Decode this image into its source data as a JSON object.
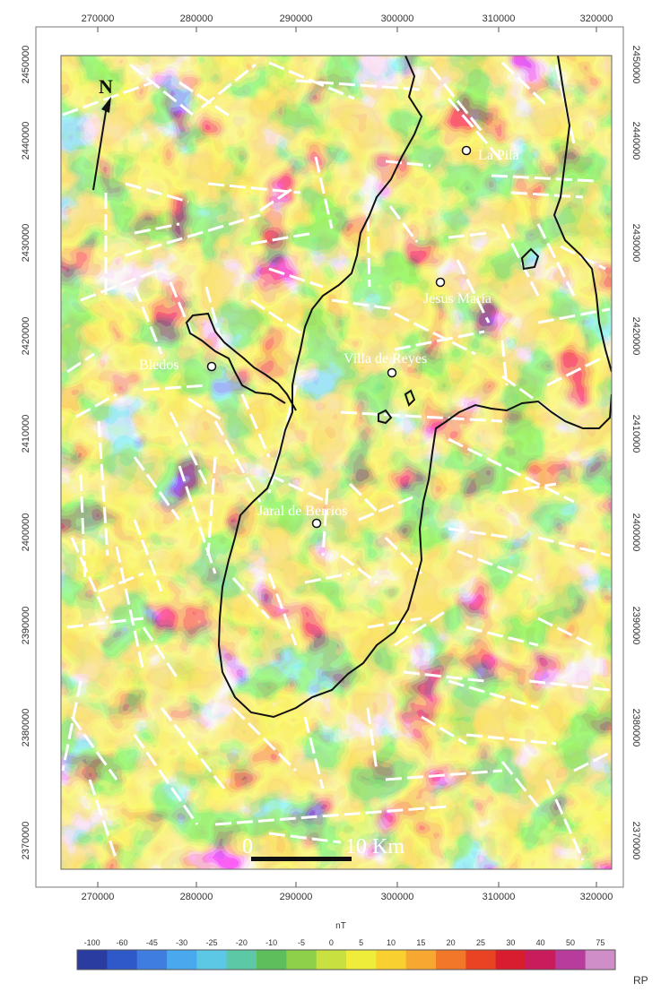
{
  "x_ticks": [
    "270000",
    "280000",
    "290000",
    "300000",
    "310000",
    "320000"
  ],
  "y_ticks": [
    "2450000",
    "2440000",
    "2430000",
    "2420000",
    "2410000",
    "2400000",
    "2390000",
    "2380000",
    "2370000"
  ],
  "places": [
    {
      "name": "La Pila"
    },
    {
      "name": "Jesus Maria"
    },
    {
      "name": "Bledos"
    },
    {
      "name": "Villa de Reyes"
    },
    {
      "name": "Jaral de Berrios"
    }
  ],
  "north_label": "N",
  "scale_bar": {
    "start_label": "0",
    "end_label": "10 Km"
  },
  "colorbar": {
    "unit": "nT",
    "tick_labels": [
      "-100",
      "-60",
      "-45",
      "-30",
      "-25",
      "-20",
      "-10",
      "-5",
      "0",
      "5",
      "10",
      "15",
      "20",
      "25",
      "30",
      "40",
      "50",
      "75"
    ],
    "side_label": "RP",
    "colors": [
      "#2a3ca0",
      "#2f58c8",
      "#3f7ee0",
      "#4aa8ee",
      "#5cc8e6",
      "#5cc8a6",
      "#5cbf5c",
      "#8fd04a",
      "#c8e040",
      "#f0ec3a",
      "#f8d030",
      "#f6a830",
      "#f07828",
      "#e84424",
      "#d81e2e",
      "#c81c5c",
      "#b83c9c",
      "#d08ec8"
    ]
  },
  "colors": {
    "frame": "#7a7a7a",
    "lineament": "#ffffff",
    "boundary": "#111111"
  }
}
